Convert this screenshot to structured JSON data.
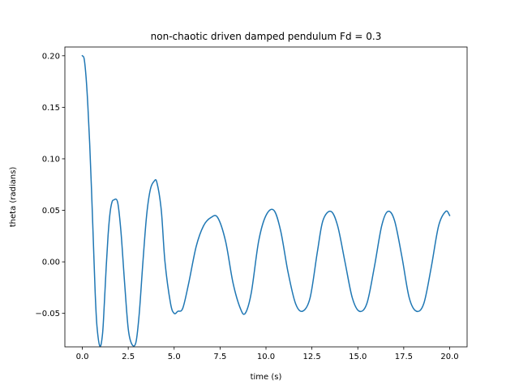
{
  "chart_data": {
    "type": "line",
    "title": "non-chaotic driven damped pendulum Fd = 0.3",
    "xlabel": "time (s)",
    "ylabel": "theta (radians)",
    "xlim": [
      -0.95,
      20.95
    ],
    "ylim": [
      -0.0825,
      0.2085
    ],
    "grid": false,
    "x_ticks": [
      0.0,
      2.5,
      5.0,
      7.5,
      10.0,
      12.5,
      15.0,
      17.5,
      20.0
    ],
    "x_tick_labels": [
      "0.0",
      "2.5",
      "5.0",
      "7.5",
      "10.0",
      "12.5",
      "15.0",
      "17.5",
      "20.0"
    ],
    "y_ticks": [
      -0.05,
      0.0,
      0.05,
      0.1,
      0.15,
      0.2
    ],
    "y_tick_labels": [
      "−0.05",
      "0.00",
      "0.05",
      "0.10",
      "0.15",
      "0.20"
    ],
    "series": [
      {
        "color": "#1f77b4",
        "x": [
          0.0,
          0.1,
          0.2,
          0.3,
          0.4,
          0.5,
          0.6,
          0.7,
          0.8,
          0.96,
          1.1,
          1.2,
          1.3,
          1.4,
          1.5,
          1.6,
          1.7,
          1.92,
          2.1,
          2.3,
          2.5,
          2.7,
          2.92,
          3.1,
          3.3,
          3.5,
          3.7,
          3.9,
          4.06,
          4.3,
          4.5,
          4.8,
          5.0,
          5.2,
          5.47,
          5.8,
          6.2,
          6.6,
          7.0,
          7.37,
          7.8,
          8.2,
          8.6,
          8.87,
          9.2,
          9.6,
          10.0,
          10.43,
          10.8,
          11.2,
          11.6,
          11.98,
          12.4,
          12.8,
          13.1,
          13.53,
          13.9,
          14.3,
          14.7,
          15.09,
          15.5,
          15.9,
          16.3,
          16.64,
          17.0,
          17.4,
          17.8,
          18.2,
          18.6,
          19.0,
          19.4,
          19.79,
          20.0
        ],
        "y": [
          0.2,
          0.197,
          0.18,
          0.152,
          0.115,
          0.07,
          0.02,
          -0.03,
          -0.063,
          -0.082,
          -0.07,
          -0.04,
          -0.005,
          0.025,
          0.046,
          0.057,
          0.06,
          0.058,
          0.03,
          -0.02,
          -0.065,
          -0.08,
          -0.078,
          -0.05,
          0.0,
          0.045,
          0.07,
          0.078,
          0.077,
          0.05,
          0.0,
          -0.04,
          -0.05,
          -0.048,
          -0.045,
          -0.02,
          0.015,
          0.035,
          0.043,
          0.043,
          0.02,
          -0.02,
          -0.045,
          -0.05,
          -0.03,
          0.02,
          0.045,
          0.05,
          0.03,
          -0.01,
          -0.04,
          -0.048,
          -0.035,
          0.01,
          0.04,
          0.049,
          0.035,
          0.0,
          -0.035,
          -0.048,
          -0.04,
          -0.005,
          0.035,
          0.049,
          0.04,
          0.005,
          -0.035,
          -0.048,
          -0.04,
          -0.005,
          0.035,
          0.049,
          0.045
        ]
      }
    ]
  }
}
